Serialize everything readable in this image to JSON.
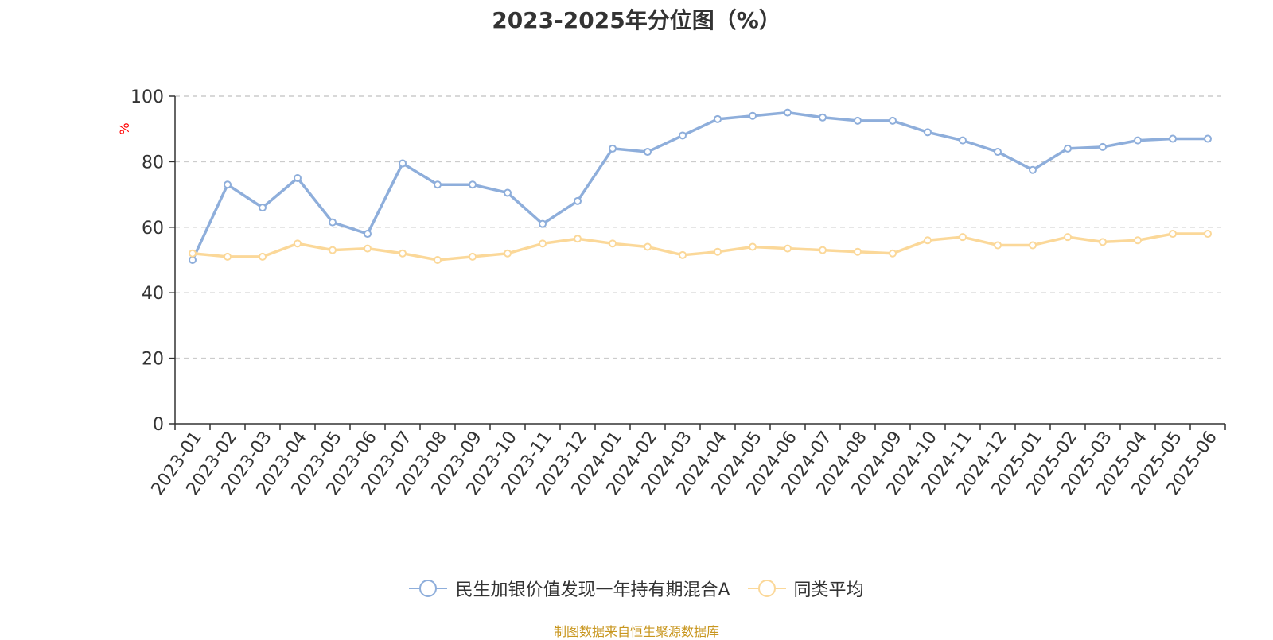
{
  "chart_data": {
    "type": "line",
    "title": "2023-2025年分位图（%）",
    "ylabel": "%",
    "xlabel": "",
    "ylim": [
      0,
      100
    ],
    "yticks": [
      0,
      20,
      40,
      60,
      80,
      100
    ],
    "grid": true,
    "legend_position": "bottom",
    "categories": [
      "2023-01",
      "2023-02",
      "2023-03",
      "2023-04",
      "2023-05",
      "2023-06",
      "2023-07",
      "2023-08",
      "2023-09",
      "2023-10",
      "2023-11",
      "2023-12",
      "2024-01",
      "2024-02",
      "2024-03",
      "2024-04",
      "2024-05",
      "2024-06",
      "2024-07",
      "2024-08",
      "2024-09",
      "2024-10",
      "2024-11",
      "2024-12",
      "2025-01",
      "2025-02",
      "2025-03",
      "2025-04",
      "2025-05",
      "2025-06"
    ],
    "series": [
      {
        "name": "民生加银价值发现一年持有期混合A",
        "color": "#8eaedb",
        "values": [
          50,
          73,
          66,
          75,
          61.5,
          58,
          79.5,
          73,
          73,
          70.5,
          61,
          68,
          84,
          83,
          88,
          93,
          94,
          95,
          93.5,
          92.5,
          92.5,
          89,
          86.5,
          83,
          77.5,
          84,
          84.5,
          86.5,
          87,
          87
        ]
      },
      {
        "name": "同类平均",
        "color": "#fbd899",
        "values": [
          52,
          51,
          51,
          55,
          53,
          53.5,
          52,
          50,
          51,
          52,
          55,
          56.5,
          55,
          54,
          51.5,
          52.5,
          54,
          53.5,
          53,
          52.5,
          52,
          56,
          57,
          54.5,
          54.5,
          57,
          55.5,
          56,
          58,
          58
        ]
      }
    ]
  },
  "source_text": "制图数据来自恒生聚源数据库",
  "colors": {
    "axis": "#333333",
    "grid": "#cccccc",
    "ylabel": "#ff0000",
    "source": "#c8961e"
  }
}
